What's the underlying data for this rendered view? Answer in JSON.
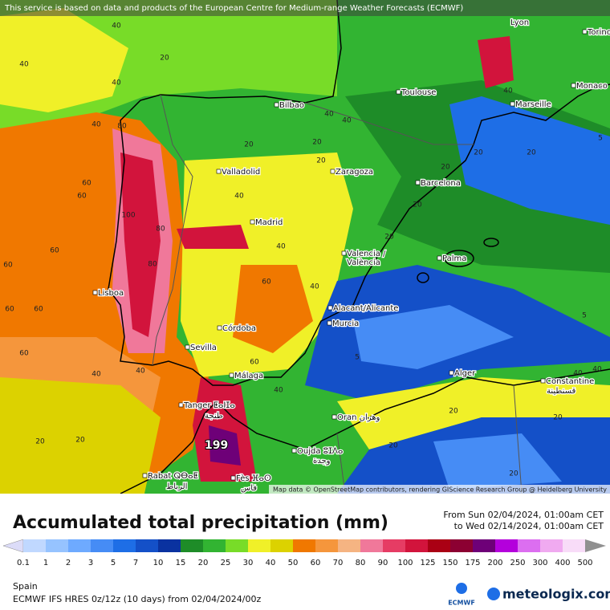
{
  "header": {
    "attribution": "This service is based on data and products of the European Centre for Medium-range Weather Forecasts (ECMWF)"
  },
  "map": {
    "places": [
      "Lyon",
      "Torino",
      "Monaco",
      "Marseille",
      "Toulouse",
      "Bilbao",
      "Valladolid",
      "Zaragoza",
      "Barcelona",
      "Madrid",
      "Valencia /",
      "València",
      "Palma",
      "Lisboa",
      "Alacant/Alicante",
      "Murcia",
      "Córdoba",
      "Sevilla",
      "Málaga",
      "Alger",
      "Constantine",
      "قسنطينة",
      "Tanger ⵟⴰⵏⵊⴰ",
      "طنجة",
      "Oran وهران",
      "Oujda ⵓⵊⴷⴰ",
      "وجدة",
      "Rabat ⵕⴱⴰⵟ",
      "الرباط",
      "Fès ⴼⴰⵙ",
      "فاس"
    ],
    "contour_labels": [
      40,
      40,
      20,
      40,
      40,
      20,
      40,
      80,
      60,
      60,
      60,
      80,
      100,
      80,
      60,
      60,
      60,
      60,
      40,
      40,
      20,
      20,
      40,
      20,
      40,
      20,
      20,
      5,
      5,
      20,
      40,
      60,
      60,
      40,
      40,
      20,
      20,
      40,
      40,
      20,
      20,
      5,
      20,
      20,
      20,
      40
    ],
    "max_label": "199",
    "credit": "Map data © OpenStreetMap contributors, rendering GIScience Research Group @ Heidelberg University"
  },
  "legend": {
    "title": "Accumulated total precipitation (mm)",
    "period_from": "From Sun 02/04/2024, 01:00am CET",
    "period_to": "to Wed 02/14/2024, 01:00am CET",
    "scale": [
      0.1,
      1,
      2,
      3,
      5,
      7,
      10,
      15,
      20,
      25,
      30,
      40,
      50,
      60,
      70,
      80,
      90,
      100,
      125,
      150,
      175,
      200,
      250,
      300,
      400,
      500
    ],
    "colors": [
      "#dcdcf8",
      "#c0d8ff",
      "#96c3ff",
      "#6eaaff",
      "#468cf5",
      "#1e6ee6",
      "#1450c8",
      "#0a32a0",
      "#1e8c28",
      "#32b432",
      "#78dc28",
      "#f0f028",
      "#dcd200",
      "#f07800",
      "#f5963c",
      "#f5b482",
      "#f0789a",
      "#e63c64",
      "#d2143c",
      "#aa0014",
      "#8c0032",
      "#6e0078",
      "#b400dc",
      "#dc6ef0",
      "#f0aaf0",
      "#f8dcf8",
      "#d2d2d2",
      "#909090"
    ]
  },
  "footer": {
    "region": "Spain",
    "model": "ECMWF IFS HRES 0z/12z (10 days) from  02/04/2024/00z",
    "ecmwf": "ECMWF",
    "brand": "meteologix.com"
  }
}
